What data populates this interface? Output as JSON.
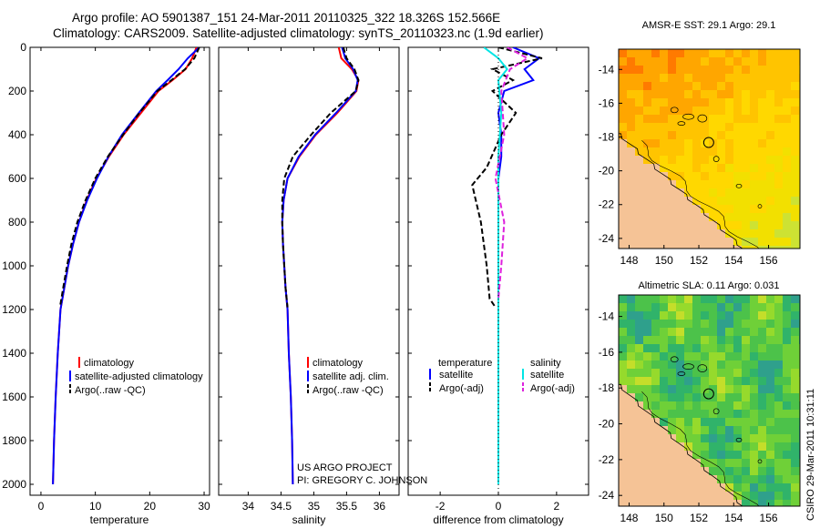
{
  "header": {
    "line1": "Argo profile: AO 5901387_151 24-Mar-2011 20110325_322 18.326S 152.566E",
    "line2": "Climatology: CARS2009. Satellite-adjusted climatology: synTS_20110323.nc (1.9d earlier)"
  },
  "credit": {
    "project": "US ARGO PROJECT",
    "pi": "PI: GREGORY C. JOHNSON",
    "stamp": "CSIRO 29-Mar-2011 10:31:11"
  },
  "colors": {
    "climatology": "#ff0000",
    "satellite": "#0000ff",
    "argo": "#000000",
    "sat_salinity": "#00e5e5",
    "argo_salinity": "#dd22dd",
    "land": "#f5c396"
  },
  "chart_data": [
    {
      "type": "line",
      "id": "temperature",
      "xlabel": "temperature",
      "ylabel": "",
      "xlim": [
        -2,
        31
      ],
      "ylim": [
        2050,
        0
      ],
      "xticks": [
        0,
        10,
        20,
        30
      ],
      "yticks": [
        0,
        200,
        400,
        600,
        800,
        1000,
        1200,
        1400,
        1600,
        1800,
        2000
      ],
      "legend": [
        "climatology",
        "satellite-adjusted climatology",
        "Argo(..raw -QC)"
      ],
      "series": [
        {
          "name": "climatology",
          "color": "#ff0000",
          "x": [
            28.6,
            27.8,
            26.6,
            24.2,
            21.6,
            18.4,
            15.2,
            12.5,
            10.2,
            8.4,
            7.0,
            5.9,
            5.0,
            4.3,
            3.6,
            3.1,
            2.7,
            2.4,
            2.2
          ],
          "depth": [
            0,
            50,
            100,
            150,
            200,
            300,
            400,
            500,
            600,
            700,
            800,
            900,
            1000,
            1100,
            1200,
            1400,
            1600,
            1800,
            2000
          ]
        },
        {
          "name": "satellite",
          "color": "#0000ff",
          "x": [
            29.1,
            27.0,
            25.3,
            23.3,
            21.2,
            18.0,
            14.9,
            12.4,
            10.3,
            8.5,
            7.0,
            5.9,
            5.0,
            4.3,
            3.6,
            3.1,
            2.7,
            2.4,
            2.2
          ],
          "depth": [
            0,
            50,
            100,
            150,
            200,
            300,
            400,
            500,
            600,
            700,
            800,
            900,
            1000,
            1100,
            1200,
            1400,
            1600,
            1800,
            2000
          ]
        },
        {
          "name": "argo",
          "color": "#000000",
          "x": [
            29.1,
            28.2,
            26.5,
            24.0,
            21.4,
            18.1,
            15.1,
            12.3,
            10.0,
            8.2,
            6.7,
            5.6,
            4.8,
            4.1,
            3.5
          ],
          "depth": [
            0,
            50,
            100,
            150,
            200,
            300,
            400,
            500,
            600,
            700,
            800,
            900,
            1000,
            1100,
            1190
          ]
        }
      ]
    },
    {
      "type": "line",
      "id": "salinity",
      "xlabel": "salinity",
      "xlim": [
        33.55,
        36.3
      ],
      "ylim": [
        2050,
        0
      ],
      "xticks": [
        34,
        34.5,
        35,
        35.5,
        36
      ],
      "legend": [
        "climatology",
        "satellite adj. clim.",
        "Argo(..raw -QC)"
      ],
      "series": [
        {
          "name": "climatology",
          "color": "#ff0000",
          "x": [
            35.38,
            35.42,
            35.58,
            35.68,
            35.65,
            35.36,
            35.03,
            34.78,
            34.6,
            34.54,
            34.52,
            34.53,
            34.55,
            34.57,
            34.6,
            34.62,
            34.65,
            34.67,
            34.68
          ],
          "depth": [
            0,
            50,
            100,
            150,
            200,
            300,
            400,
            500,
            600,
            700,
            800,
            900,
            1000,
            1100,
            1200,
            1400,
            1600,
            1800,
            2000
          ]
        },
        {
          "name": "satellite",
          "color": "#0000ff",
          "x": [
            35.43,
            35.48,
            35.6,
            35.67,
            35.64,
            35.34,
            35.02,
            34.77,
            34.6,
            34.54,
            34.52,
            34.53,
            34.55,
            34.57,
            34.6,
            34.62,
            34.65,
            34.67,
            34.68
          ],
          "depth": [
            0,
            50,
            100,
            150,
            200,
            300,
            400,
            500,
            600,
            700,
            800,
            900,
            1000,
            1100,
            1200,
            1400,
            1600,
            1800,
            2000
          ]
        },
        {
          "name": "argo",
          "color": "#000000",
          "x": [
            35.45,
            35.5,
            35.62,
            35.68,
            35.64,
            35.26,
            34.96,
            34.68,
            34.55,
            34.52,
            34.52,
            34.53,
            34.55,
            34.57,
            34.6
          ],
          "depth": [
            0,
            50,
            100,
            150,
            200,
            300,
            400,
            500,
            600,
            700,
            800,
            900,
            1000,
            1100,
            1190
          ]
        }
      ]
    },
    {
      "type": "line",
      "id": "difference",
      "xlabel": "difference from climatology",
      "xlim": [
        -3.1,
        3.1
      ],
      "ylim": [
        2050,
        0
      ],
      "xticks": [
        -2,
        0,
        2
      ],
      "legend_left_title": "temperature",
      "legend_right_title": "salinity",
      "legend": [
        "satellite",
        "Argo(-adj)",
        "satellite",
        "Argo(-adj)"
      ],
      "series": [
        {
          "name": "satellite",
          "variable": "temperature",
          "color": "#0000ff",
          "x": [
            0.5,
            1.4,
            0.9,
            1.2,
            0.2,
            0.0,
            0.1,
            0.1,
            0.0,
            0.0,
            0.0,
            0.0,
            0.0,
            0.0,
            0.0
          ],
          "depth": [
            0,
            50,
            100,
            150,
            200,
            300,
            400,
            500,
            600,
            700,
            800,
            1000,
            1400,
            1800,
            2000
          ]
        },
        {
          "name": "Argo(-adj)",
          "variable": "temperature",
          "color": "#000000",
          "x": [
            0.0,
            1.5,
            -0.2,
            0.5,
            -0.2,
            0.6,
            0.1,
            -0.4,
            -0.9,
            -0.6,
            -0.4,
            -0.3,
            -0.1
          ],
          "depth": [
            0,
            50,
            100,
            150,
            200,
            300,
            400,
            550,
            630,
            800,
            1000,
            1150,
            1190
          ]
        },
        {
          "name": "satellite",
          "variable": "salinity",
          "color": "#00e5e5",
          "x": [
            -0.5,
            0.0,
            0.3,
            0.0,
            0.1,
            0.0,
            0.0,
            0.0,
            0.0,
            0.0
          ],
          "depth": [
            0,
            50,
            100,
            150,
            300,
            500,
            800,
            1200,
            1600,
            2000
          ]
        },
        {
          "name": "Argo(-adj)",
          "variable": "salinity",
          "color": "#dd22dd",
          "x": [
            0.3,
            1.0,
            0.4,
            0.1,
            0.2,
            -0.1,
            0.2,
            0.1,
            0.0
          ],
          "depth": [
            0,
            50,
            100,
            200,
            400,
            600,
            800,
            1000,
            1150
          ]
        }
      ]
    },
    {
      "type": "heatmap",
      "id": "sst_map",
      "title": "AMSR-E SST: 29.1 Argo: 29.1",
      "xticks": [
        148,
        150,
        152,
        154,
        156
      ],
      "yticks": [
        -14,
        -16,
        -18,
        -20,
        -22,
        -24
      ],
      "xlim": [
        147.4,
        157.8
      ],
      "ylim": [
        -24.6,
        -12.8
      ],
      "palette": [
        "#ff7a00",
        "#ffa600",
        "#ffc400",
        "#ffd800",
        "#f2e000",
        "#cde233",
        "#b2df4a"
      ],
      "float_marker": {
        "lon": 152.566,
        "lat": -18.326
      }
    },
    {
      "type": "heatmap",
      "id": "sla_map",
      "title": "Altimetric SLA: 0.11 Argo: 0.031",
      "xticks": [
        148,
        150,
        152,
        154,
        156
      ],
      "yticks": [
        -14,
        -16,
        -18,
        -20,
        -22,
        -24
      ],
      "xlim": [
        147.4,
        157.8
      ],
      "ylim": [
        -24.6,
        -12.8
      ],
      "palette": [
        "#2fa08c",
        "#30b36a",
        "#4cc24a",
        "#6fd038",
        "#96da2c",
        "#c4de2a",
        "#e8cf2a",
        "#f3ad30"
      ],
      "float_marker": {
        "lon": 152.566,
        "lat": -18.326
      }
    }
  ]
}
